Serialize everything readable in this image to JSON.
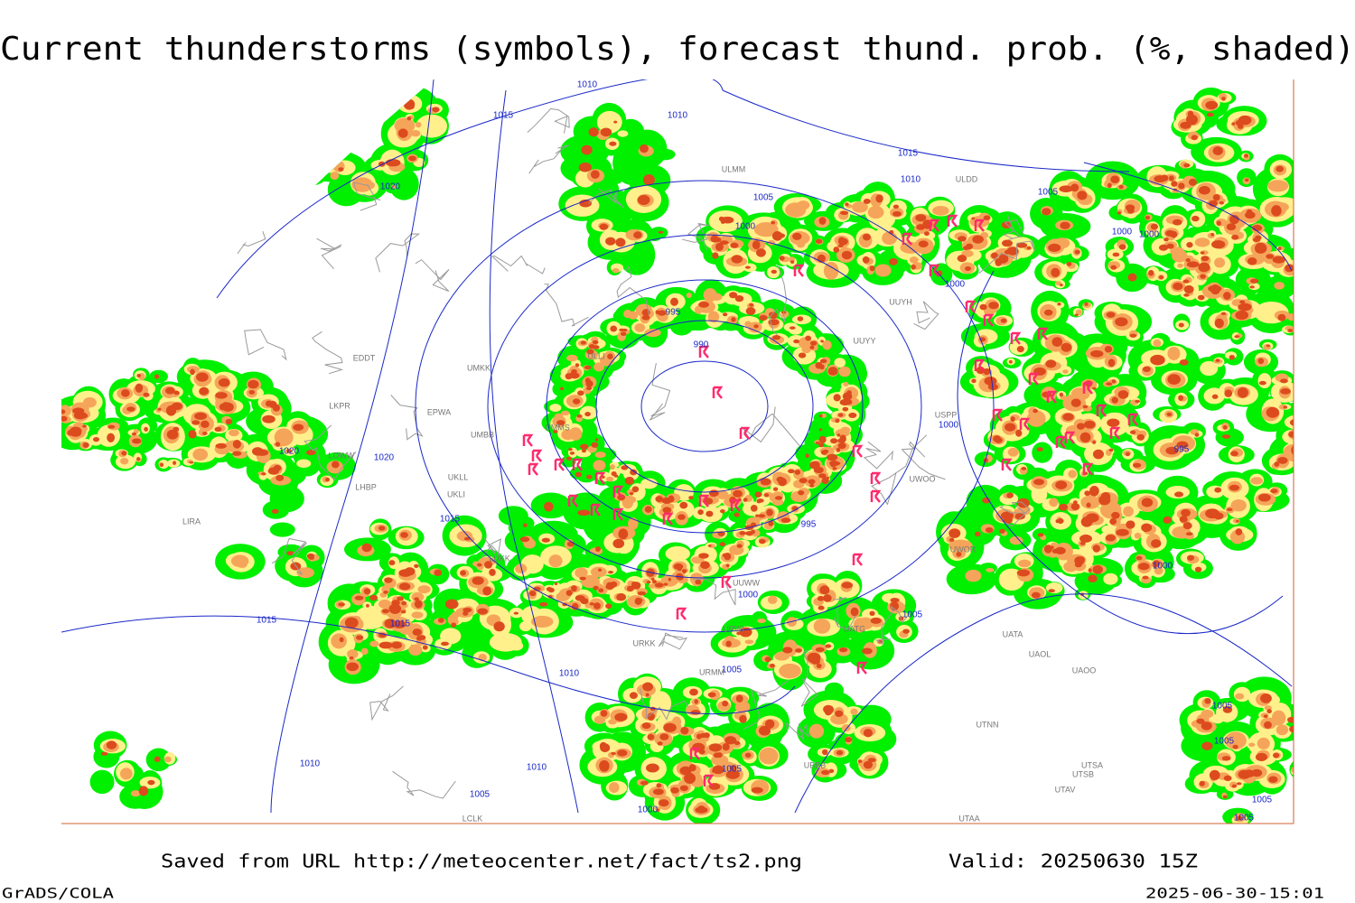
{
  "header": {
    "title": "Current thunderstorms (symbols), forecast thund. prob. (%, shaded)"
  },
  "map": {
    "isobar_labels": [
      "1010",
      "1015",
      "1010",
      "1020",
      "1015",
      "1010",
      "1005",
      "1005",
      "1000",
      "1000",
      "1000",
      "1000",
      "995",
      "990",
      "1000",
      "995",
      "1020",
      "1020",
      "1015",
      "995",
      "1000",
      "1000",
      "1005",
      "1015",
      "1015",
      "1010",
      "1005",
      "1005",
      "1005",
      "1010",
      "1010",
      "1005",
      "1005",
      "1000",
      "1005",
      "1005"
    ],
    "stations": [
      "EDDT",
      "LKPR",
      "EPWA",
      "UMKK",
      "UMBB",
      "LOWW",
      "LHBP",
      "UKLL",
      "UKLI",
      "LIRA",
      "LUKK",
      "ULLI",
      "UMMS",
      "UUWW",
      "URWI",
      "UATG",
      "UATA",
      "UAOL",
      "UAOO",
      "UTNN",
      "UTSA",
      "UTSB",
      "UTAV",
      "UTAA",
      "UBBB",
      "ULMM",
      "ULDD",
      "UUYH",
      "UUYY",
      "UWOO",
      "UWOR",
      "USPP",
      "LCLK",
      "URKK",
      "URMM"
    ]
  },
  "footer": {
    "source": "Saved from URL http://meteocenter.net/fact/ts2.png",
    "valid": "Valid: 20250630 15Z",
    "software": "GrADS/COLA",
    "timestamp": "2025-06-30-15:01"
  }
}
